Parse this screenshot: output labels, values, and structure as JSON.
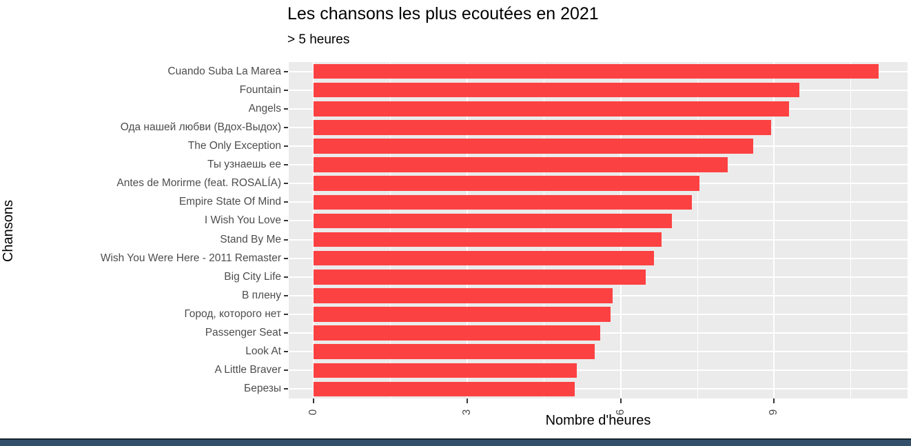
{
  "title": "Les chansons les plus ecoutées en 2021",
  "subtitle": "> 5 heures",
  "colors": {
    "bar": "#FC4142",
    "panel_background": "#EBEBEB",
    "gridline": "#FFFFFF",
    "axis_text": "#4D4D4D",
    "tick_mark": "#333333",
    "title_text": "#000000",
    "footer_band": "#33506B",
    "footer_line": "#17242F"
  },
  "chart_data": {
    "type": "bar",
    "orientation": "horizontal",
    "title": "Les chansons les plus ecoutées en 2021",
    "subtitle": "> 5 heures",
    "xlabel": "Nombre d'heures",
    "ylabel": "Chansons",
    "categories": [
      "Cuando Suba La Marea",
      "Fountain",
      "Angels",
      "Ода нашей любви (Вдох-Выдох)",
      "The Only Exception",
      "Ты узнаешь ее",
      "Antes de Morirme (feat. ROSALÍA)",
      "Empire State Of Mind",
      "I Wish You Love",
      "Stand By Me",
      "Wish You Were Here - 2011 Remaster",
      "Big City Life",
      "В плену",
      "Город, которого нет",
      "Passenger Seat",
      "Look At",
      "A Little Braver",
      "Березы"
    ],
    "values": [
      11.05,
      9.5,
      9.3,
      8.95,
      8.6,
      8.1,
      7.55,
      7.4,
      7.0,
      6.8,
      6.65,
      6.5,
      5.85,
      5.8,
      5.6,
      5.5,
      5.15,
      5.1
    ],
    "x_ticks": [
      0,
      3,
      6,
      9
    ],
    "x_minor_ticks": [
      1.5,
      4.5,
      7.5,
      10.5
    ],
    "xlim": [
      0,
      11.6
    ],
    "grid": true,
    "legend_position": "none",
    "bar_color_name": "red"
  }
}
